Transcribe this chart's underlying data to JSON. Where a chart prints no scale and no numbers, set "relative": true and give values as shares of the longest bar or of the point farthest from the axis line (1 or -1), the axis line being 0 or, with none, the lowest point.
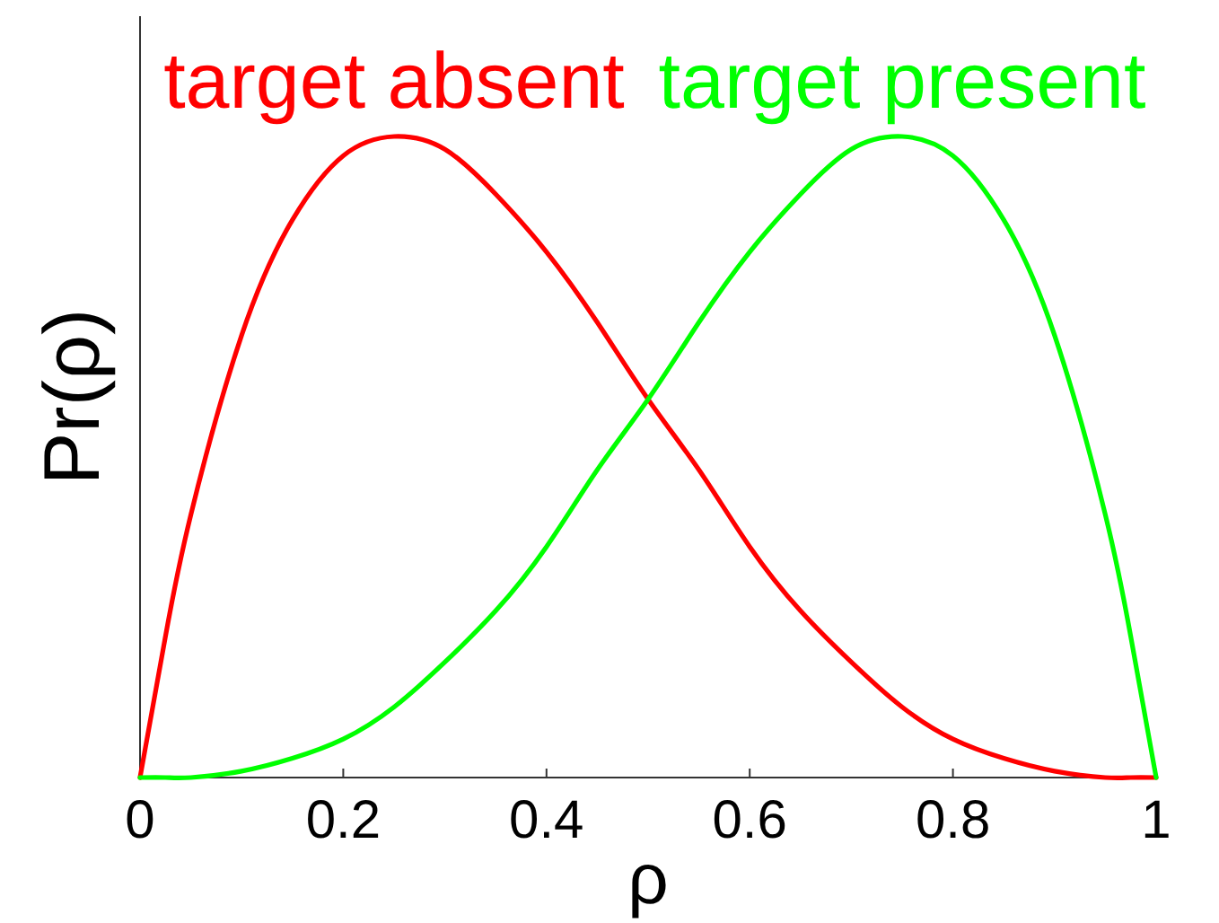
{
  "chart_data": {
    "type": "line",
    "relative": true,
    "xlabel": "ρ",
    "ylabel": "Pr(ρ)",
    "x": [
      0,
      0.025,
      0.05,
      0.1,
      0.15,
      0.2,
      0.25,
      0.3,
      0.35,
      0.4,
      0.45,
      0.5,
      0.55,
      0.6,
      0.65,
      0.7,
      0.75,
      0.8,
      0.85,
      0.9,
      0.95,
      0.975,
      1
    ],
    "xlim": [
      0,
      1
    ],
    "xticks": [
      0,
      0.2,
      0.4,
      0.6,
      0.8,
      1
    ],
    "tick_labels": "x",
    "series": [
      {
        "name": "target absent",
        "color": "#ff0000",
        "values": [
          0,
          0.22,
          0.41,
          0.69,
          0.87,
          0.97,
          1,
          0.98,
          0.91,
          0.82,
          0.71,
          0.59,
          0.48,
          0.36,
          0.26,
          0.18,
          0.11,
          0.06,
          0.03,
          0.01,
          0,
          0,
          0
        ]
      },
      {
        "name": "target present",
        "color": "#00ff00",
        "values": [
          0,
          0,
          0,
          0.01,
          0.03,
          0.06,
          0.11,
          0.18,
          0.26,
          0.36,
          0.48,
          0.59,
          0.71,
          0.82,
          0.91,
          0.98,
          1,
          0.97,
          0.87,
          0.69,
          0.41,
          0.22,
          0
        ]
      }
    ]
  }
}
